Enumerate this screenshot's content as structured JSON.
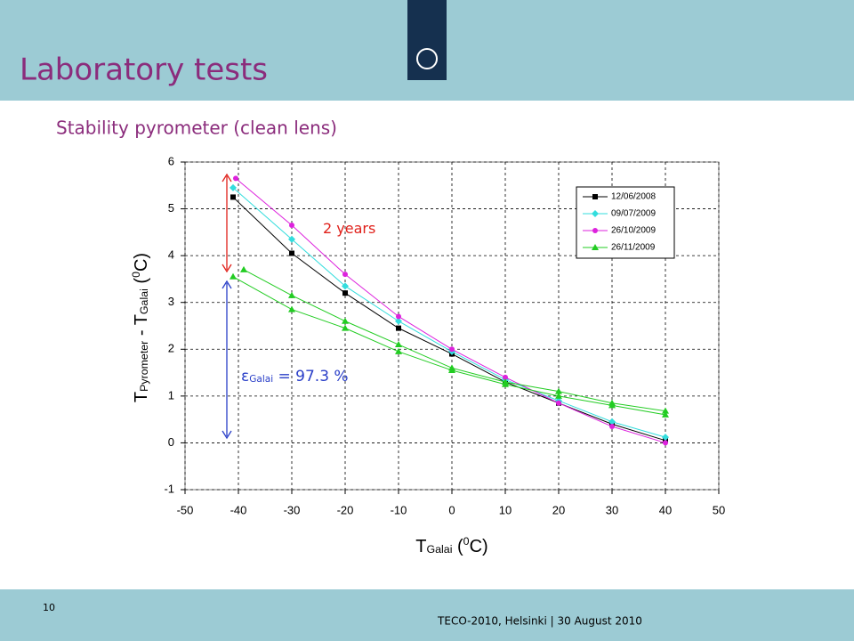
{
  "slide": {
    "title": "Laboratory tests",
    "subtitle": "Stability pyrometer (clean lens)",
    "page_number": "10",
    "footer": "TECO-2010, Helsinki | 30 August 2010"
  },
  "chart_data": {
    "type": "line",
    "xlabel": [
      {
        "text": "T"
      },
      {
        "text": "Galai",
        "shift": "sub"
      },
      {
        "text": " ("
      },
      {
        "text": "0",
        "shift": "super"
      },
      {
        "text": "C)"
      }
    ],
    "ylabel": [
      {
        "text": "T"
      },
      {
        "text": "Pyrometer",
        "shift": "sub"
      },
      {
        "text": " - T"
      },
      {
        "text": "Galai",
        "shift": "sub"
      },
      {
        "text": " ("
      },
      {
        "text": "0",
        "shift": "super"
      },
      {
        "text": "C)"
      }
    ],
    "xlim": [
      -50,
      50
    ],
    "xticks": [
      -50,
      -40,
      -30,
      -20,
      -10,
      0,
      10,
      20,
      30,
      40,
      50
    ],
    "ylim": [
      -1,
      6
    ],
    "yticks": [
      -1,
      0,
      1,
      2,
      3,
      4,
      5,
      6
    ],
    "grid": true,
    "legend": "upper right",
    "series": [
      {
        "name": "12/06/2008",
        "color": "#000000",
        "marker": "square",
        "x": [
          -41,
          -30,
          -20,
          -10,
          0,
          10,
          20,
          30,
          40
        ],
        "values": [
          5.25,
          4.05,
          3.2,
          2.45,
          1.9,
          1.3,
          0.85,
          0.4,
          0.05
        ]
      },
      {
        "name": "09/07/2009",
        "color": "#33dddd",
        "marker": "diamond",
        "x": [
          -41,
          -30,
          -20,
          -10,
          0,
          10,
          20,
          30,
          40
        ],
        "values": [
          5.45,
          4.35,
          3.35,
          2.6,
          1.95,
          1.35,
          0.9,
          0.45,
          0.12
        ]
      },
      {
        "name": "26/10/2009",
        "color": "#dd22dd",
        "marker": "circle",
        "x": [
          -40.5,
          -30,
          -20,
          -10,
          0,
          10,
          20,
          30,
          40
        ],
        "values": [
          5.65,
          4.65,
          3.6,
          2.7,
          2.0,
          1.4,
          0.85,
          0.35,
          0.0
        ]
      },
      {
        "name": "26/11/2009",
        "color": "#22cc22",
        "marker": "triangle",
        "x": [
          -41,
          -30,
          -20,
          -10,
          0,
          10,
          20,
          30,
          40,
          40,
          30,
          20,
          10,
          0,
          -10,
          -20,
          -30,
          -39
        ],
        "values": [
          3.55,
          2.85,
          2.45,
          1.95,
          1.55,
          1.25,
          1.0,
          0.8,
          0.6,
          0.68,
          0.85,
          1.1,
          1.3,
          1.6,
          2.1,
          2.6,
          3.15,
          3.7
        ]
      }
    ],
    "annotations": [
      {
        "parts": [
          {
            "text": "2 years"
          }
        ],
        "color": "#e0201a"
      },
      {
        "parts": [
          {
            "text": "ε"
          },
          {
            "text": "Galai",
            "shift": "sub"
          },
          {
            "text": " = 97.3 %"
          }
        ],
        "color": "#2a3fc8"
      }
    ]
  }
}
